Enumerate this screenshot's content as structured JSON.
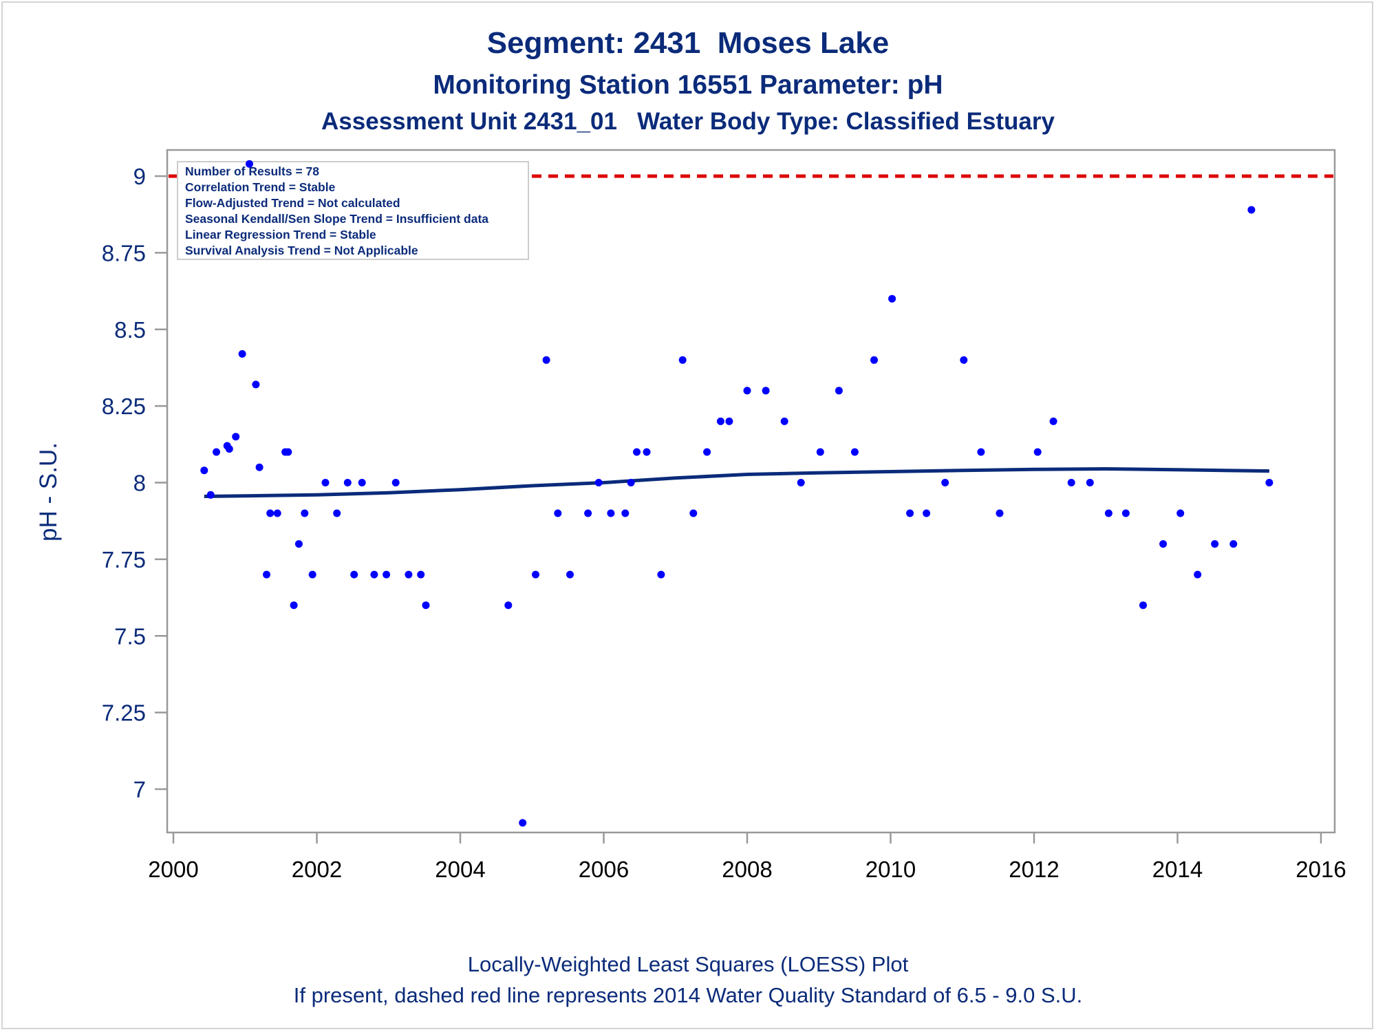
{
  "titles": {
    "line1": "Segment: 2431  Moses Lake",
    "line2": "Monitoring Station 16551 Parameter: pH",
    "line3": "Assessment Unit 2431_01   Water Body Type: Classified Estuary"
  },
  "footnotes": {
    "line1": "Locally-Weighted Least Squares (LOESS) Plot",
    "line2": "If present, dashed red line represents 2014 Water Quality Standard of 6.5 - 9.0 S.U."
  },
  "stats_box": [
    "Number of Results = 78",
    "Correlation Trend = Stable",
    "Flow-Adjusted Trend = Not calculated",
    "Seasonal Kendall/Sen Slope Trend = Insufficient data",
    "Linear Regression Trend = Stable",
    "Survival Analysis Trend = Not Applicable"
  ],
  "colors": {
    "text": "#0b2b7a",
    "points": "#0000ff",
    "loess": "#0b2b7a",
    "standard_line": "#dd0000",
    "axis": "#999999"
  },
  "chart_data": {
    "type": "scatter",
    "ylabel": "pH - S.U.",
    "xlabel": "",
    "xlim": [
      2000,
      2016
    ],
    "ylim": [
      6.85,
      9.1
    ],
    "xticks": [
      "2000",
      "2002",
      "2004",
      "2006",
      "2008",
      "2010",
      "2012",
      "2014",
      "2016"
    ],
    "yticks": [
      "7",
      "7.25",
      "7.5",
      "7.75",
      "8",
      "8.25",
      "8.5",
      "8.75",
      "9"
    ],
    "grid": false,
    "standard_line": {
      "y": 9.0,
      "style": "dashed"
    },
    "points": [
      [
        2000.43,
        8.04
      ],
      [
        2000.52,
        7.96
      ],
      [
        2000.6,
        8.1
      ],
      [
        2000.75,
        8.12
      ],
      [
        2000.78,
        8.11
      ],
      [
        2000.87,
        8.15
      ],
      [
        2000.96,
        8.42
      ],
      [
        2001.06,
        9.04
      ],
      [
        2001.15,
        8.32
      ],
      [
        2001.2,
        8.05
      ],
      [
        2001.3,
        7.7
      ],
      [
        2001.35,
        7.9
      ],
      [
        2001.45,
        7.9
      ],
      [
        2001.56,
        8.1
      ],
      [
        2001.6,
        8.1
      ],
      [
        2001.68,
        7.6
      ],
      [
        2001.75,
        7.8
      ],
      [
        2001.83,
        7.9
      ],
      [
        2001.94,
        7.7
      ],
      [
        2002.12,
        8.0
      ],
      [
        2002.28,
        7.9
      ],
      [
        2002.43,
        8.0
      ],
      [
        2002.52,
        7.7
      ],
      [
        2002.63,
        8.0
      ],
      [
        2002.8,
        7.7
      ],
      [
        2002.97,
        7.7
      ],
      [
        2003.1,
        8.0
      ],
      [
        2003.28,
        7.7
      ],
      [
        2003.45,
        7.7
      ],
      [
        2003.52,
        7.6
      ],
      [
        2004.67,
        7.6
      ],
      [
        2004.87,
        6.89
      ],
      [
        2005.05,
        7.7
      ],
      [
        2005.2,
        8.4
      ],
      [
        2005.36,
        7.9
      ],
      [
        2005.53,
        7.7
      ],
      [
        2005.78,
        7.9
      ],
      [
        2005.93,
        8.0
      ],
      [
        2006.1,
        7.9
      ],
      [
        2006.3,
        7.9
      ],
      [
        2006.38,
        8.0
      ],
      [
        2006.46,
        8.1
      ],
      [
        2006.6,
        8.1
      ],
      [
        2006.8,
        7.7
      ],
      [
        2007.1,
        8.4
      ],
      [
        2007.25,
        7.9
      ],
      [
        2007.44,
        8.1
      ],
      [
        2007.63,
        8.2
      ],
      [
        2007.75,
        8.2
      ],
      [
        2008.0,
        8.3
      ],
      [
        2008.26,
        8.3
      ],
      [
        2008.52,
        8.2
      ],
      [
        2008.75,
        8.0
      ],
      [
        2009.02,
        8.1
      ],
      [
        2009.28,
        8.3
      ],
      [
        2009.5,
        8.1
      ],
      [
        2009.77,
        8.4
      ],
      [
        2010.02,
        8.6
      ],
      [
        2010.27,
        7.9
      ],
      [
        2010.5,
        7.9
      ],
      [
        2010.76,
        8.0
      ],
      [
        2011.02,
        8.4
      ],
      [
        2011.26,
        8.1
      ],
      [
        2011.52,
        7.9
      ],
      [
        2012.05,
        8.1
      ],
      [
        2012.27,
        8.2
      ],
      [
        2012.52,
        8.0
      ],
      [
        2012.78,
        8.0
      ],
      [
        2013.04,
        7.9
      ],
      [
        2013.28,
        7.9
      ],
      [
        2013.52,
        7.6
      ],
      [
        2013.8,
        7.8
      ],
      [
        2014.04,
        7.9
      ],
      [
        2014.28,
        7.7
      ],
      [
        2014.52,
        7.8
      ],
      [
        2014.78,
        7.8
      ],
      [
        2015.03,
        8.89
      ],
      [
        2015.28,
        8.0
      ]
    ],
    "loess": [
      [
        2000.43,
        7.955
      ],
      [
        2001.0,
        7.957
      ],
      [
        2002.0,
        7.96
      ],
      [
        2003.0,
        7.967
      ],
      [
        2004.0,
        7.977
      ],
      [
        2005.0,
        7.99
      ],
      [
        2006.0,
        8.0
      ],
      [
        2007.0,
        8.015
      ],
      [
        2008.0,
        8.027
      ],
      [
        2009.0,
        8.032
      ],
      [
        2010.0,
        8.036
      ],
      [
        2011.0,
        8.04
      ],
      [
        2012.0,
        8.043
      ],
      [
        2013.0,
        8.045
      ],
      [
        2014.0,
        8.042
      ],
      [
        2015.28,
        8.038
      ]
    ]
  }
}
